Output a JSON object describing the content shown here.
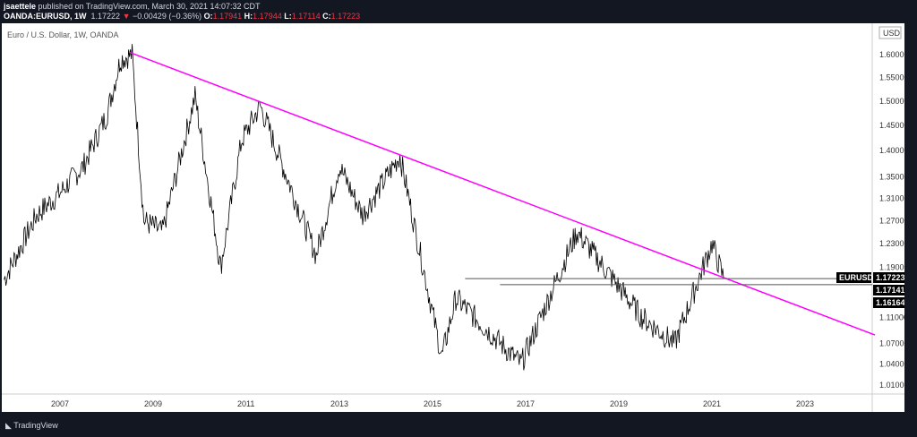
{
  "header": {
    "author": "jsaettele",
    "published": "published on TradingView.com, March 30, 2021 14:07:32 CDT",
    "symbol": "OANDA:EURUSD, 1W",
    "last": "1.17222",
    "change": "−0.00429 (−0.36%)",
    "o_label": "O:",
    "o": "1.17941",
    "h_label": "H:",
    "h": "1.17944",
    "l_label": "L:",
    "l": "1.17114",
    "c_label": "C:",
    "c": "1.17223"
  },
  "chart": {
    "title": "Euro / U.S. Dollar, 1W, OANDA",
    "currency": "USD",
    "line_color": "#ff00ff",
    "price_color": "#000000"
  },
  "footer": {
    "brand": "TradingView"
  },
  "chart_data": {
    "type": "line",
    "scale": "log",
    "x_ticks": [
      "2007",
      "2009",
      "2011",
      "2013",
      "2015",
      "2017",
      "2019",
      "2021",
      "2023"
    ],
    "y_ticks": [
      "1.60000",
      "1.55000",
      "1.50000",
      "1.45000",
      "1.40000",
      "1.35000",
      "1.31000",
      "1.27000",
      "1.23000",
      "1.19000",
      "1.11000",
      "1.07000",
      "1.04000",
      "1.01000"
    ],
    "ylim": [
      1.0,
      1.65
    ],
    "xlim": [
      2005.75,
      2024.5
    ],
    "series": [
      {
        "x": [
          2005.8,
          2006.5,
          2007.0,
          2007.5,
          2008.0,
          2008.3,
          2008.55,
          2008.8,
          2009.2,
          2009.9,
          2010.45,
          2010.9,
          2011.3,
          2012.5,
          2013.0,
          2013.5,
          2014.3,
          2015.2,
          2015.5,
          2016.9,
          2018.1,
          2019.5,
          2020.2,
          2021.0,
          2021.25
        ],
        "y": [
          1.17,
          1.28,
          1.32,
          1.37,
          1.47,
          1.59,
          1.6,
          1.27,
          1.25,
          1.51,
          1.19,
          1.42,
          1.49,
          1.21,
          1.37,
          1.28,
          1.39,
          1.05,
          1.14,
          1.04,
          1.25,
          1.11,
          1.07,
          1.23,
          1.172
        ]
      }
    ],
    "trendline": {
      "from": [
        2008.5,
        1.605
      ],
      "to": [
        2024.5,
        1.083
      ]
    },
    "levels": [
      {
        "value": "1.17141",
        "from": 2015.7
      },
      {
        "value": "1.16164",
        "from": 2016.45
      }
    ],
    "price_labels": [
      {
        "label": "EURUSD",
        "value": "1.17223"
      },
      {
        "value": "1.17141"
      },
      {
        "value": "1.16164"
      }
    ]
  }
}
